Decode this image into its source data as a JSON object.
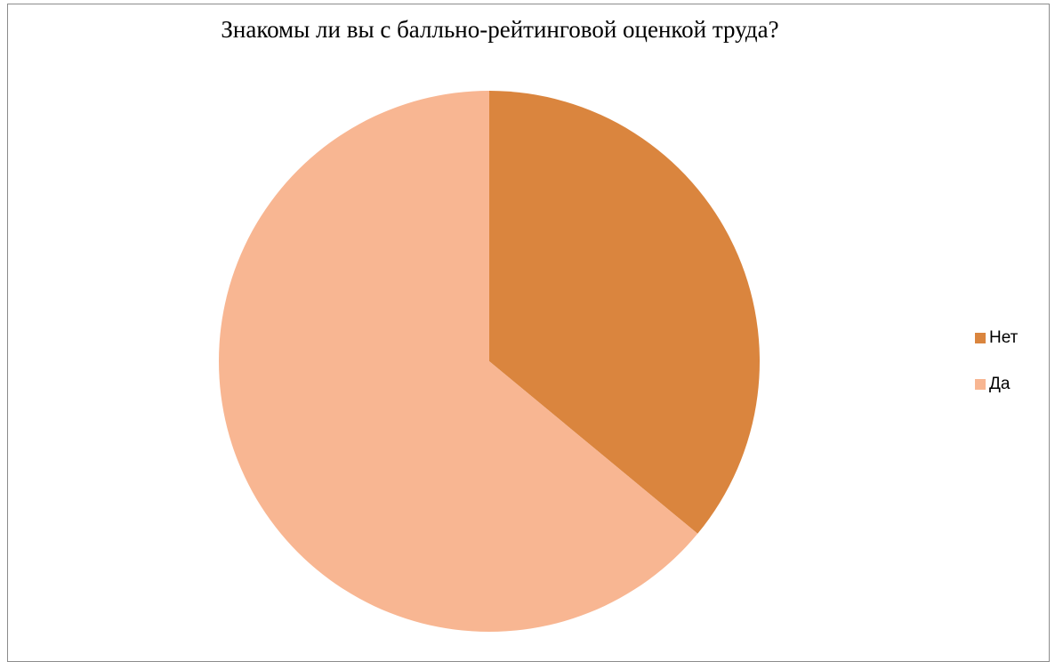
{
  "chart_data": {
    "type": "pie",
    "title": "Знакомы ли вы с балльно-рейтинговой оценкой труда?",
    "start_angle_deg": 0,
    "direction": "clockwise",
    "legend_position": "right",
    "slices": [
      {
        "label": "Нет",
        "value": 36,
        "color": "#DA853E"
      },
      {
        "label": "Да",
        "value": 64,
        "color": "#F8B692"
      }
    ]
  }
}
